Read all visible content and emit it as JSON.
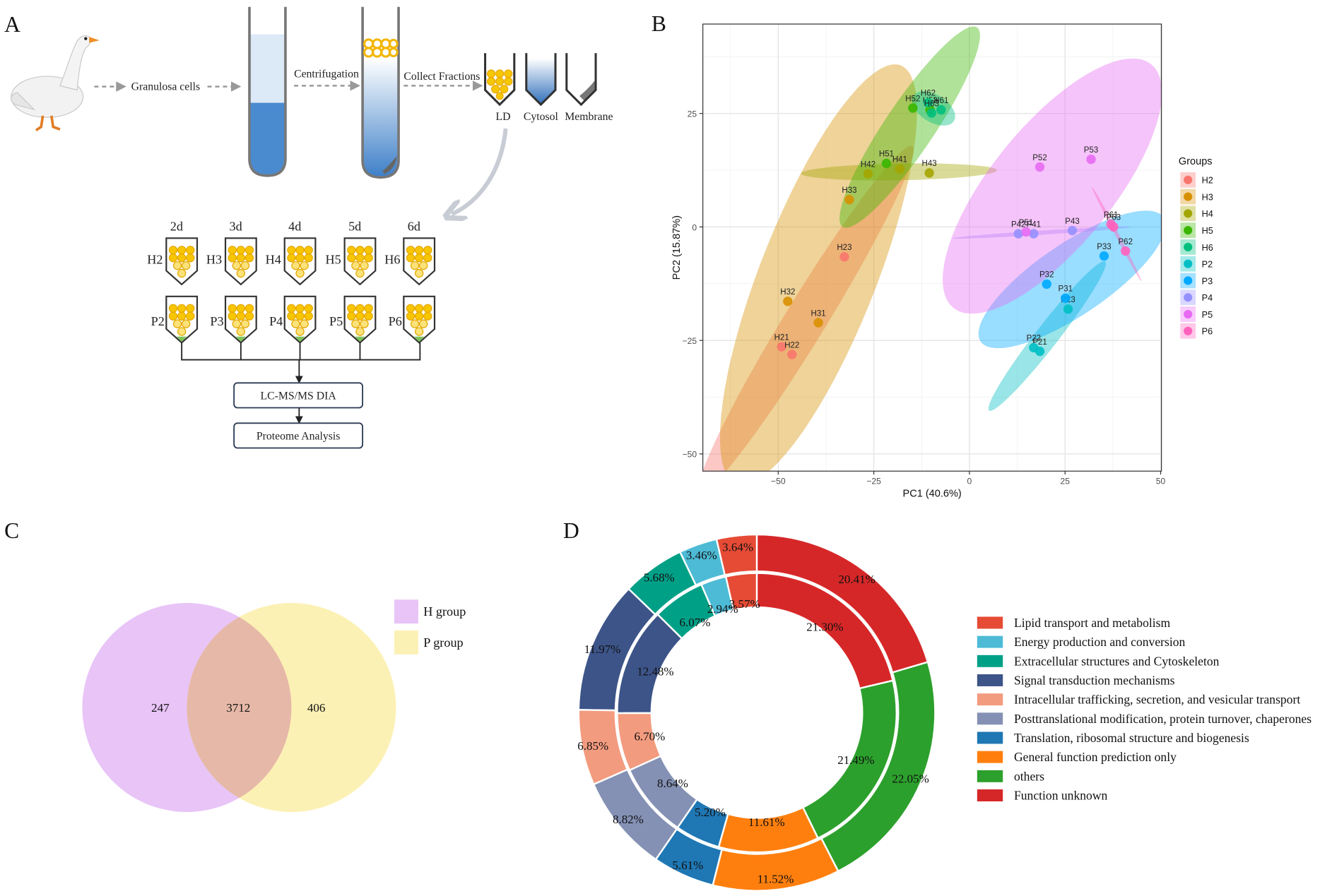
{
  "panel_labels": [
    "A",
    "B",
    "C",
    "D"
  ],
  "diagram": {
    "steps": [
      "Granulosa cells",
      "Centrifugation",
      "Collect Fractions"
    ],
    "fractions": [
      "LD",
      "Cytosol",
      "Membrane"
    ],
    "days": [
      "2d",
      "3d",
      "4d",
      "5d",
      "6d"
    ],
    "h_samples": [
      "H2",
      "H3",
      "H4",
      "H5",
      "H6"
    ],
    "p_samples": [
      "P2",
      "P3",
      "P4",
      "P5",
      "P6"
    ],
    "workflow": [
      "LC-MS/MS DIA",
      "Proteome Analysis"
    ]
  },
  "chart_data": [
    {
      "type": "scatter",
      "xlabel": "PC1 (40.6%)",
      "ylabel": "PC2 (15.87%)",
      "legend_title": "Groups",
      "xlim": [
        -69.7,
        50.2
      ],
      "ylim": [
        -53.8,
        44.7
      ],
      "xticks": [
        {
          "value": -50,
          "label": "−50"
        },
        {
          "value": -25,
          "label": "−25"
        },
        0,
        25,
        50
      ],
      "yticks": [
        {
          "value": -50,
          "label": "−50"
        },
        {
          "value": -25,
          "label": "−25"
        },
        0,
        25
      ],
      "grid": true,
      "series": [
        {
          "name": "H2",
          "color": "#F8766D",
          "labels": [
            "H21",
            "H22",
            "H23"
          ],
          "x": [
            -49.1,
            -46.4,
            -32.7
          ],
          "values": [
            -26.4,
            -28.1,
            -6.6
          ]
        },
        {
          "name": "H3",
          "color": "#D89000",
          "labels": [
            "H31",
            "H32",
            "H33"
          ],
          "x": [
            -39.5,
            -47.5,
            -31.4
          ],
          "values": [
            -21.1,
            -16.4,
            6.0
          ]
        },
        {
          "name": "H4",
          "color": "#A3A500",
          "labels": [
            "H41",
            "H42",
            "H43"
          ],
          "x": [
            -18.2,
            -26.5,
            -10.5
          ],
          "values": [
            12.8,
            11.7,
            11.9
          ]
        },
        {
          "name": "H5",
          "color": "#39B600",
          "labels": [
            "H51",
            "H52",
            "H53"
          ],
          "x": [
            -21.7,
            -14.8,
            -10.3
          ],
          "values": [
            14.0,
            26.2,
            25.8
          ]
        },
        {
          "name": "H6",
          "color": "#00BF7D",
          "labels": [
            "H61",
            "H62",
            "H63"
          ],
          "x": [
            -7.4,
            -10.8,
            -9.9
          ],
          "values": [
            25.8,
            27.4,
            25.1
          ]
        },
        {
          "name": "P2",
          "color": "#00BFC4",
          "labels": [
            "P21",
            "P22",
            "P23"
          ],
          "x": [
            18.4,
            16.8,
            25.8
          ],
          "values": [
            -27.4,
            -26.6,
            -18.1
          ]
        },
        {
          "name": "P3",
          "color": "#00A9FF",
          "labels": [
            "P31",
            "P32",
            "P33"
          ],
          "x": [
            25.1,
            20.2,
            35.2
          ],
          "values": [
            -15.7,
            -12.6,
            -6.4
          ]
        },
        {
          "name": "P4",
          "color": "#9590FF",
          "labels": [
            "P41",
            "P42",
            "P43"
          ],
          "x": [
            16.8,
            12.8,
            26.9
          ],
          "values": [
            -1.5,
            -1.5,
            -0.8
          ]
        },
        {
          "name": "P5",
          "color": "#E76BF3",
          "labels": [
            "P51",
            "P52",
            "P53"
          ],
          "x": [
            14.8,
            18.4,
            31.8
          ],
          "values": [
            -1.1,
            13.2,
            14.9
          ]
        },
        {
          "name": "P6",
          "color": "#FF62BC",
          "labels": [
            "P61",
            "P62",
            "P63"
          ],
          "x": [
            37.0,
            40.8,
            37.7
          ],
          "values": [
            0.6,
            -5.3,
            0.0
          ]
        }
      ]
    },
    {
      "type": "venn",
      "sets": [
        {
          "name": "H group",
          "color": "#E8C4F7",
          "value": 247
        },
        {
          "name": "P group",
          "color": "#FCF1B5",
          "value": 406
        }
      ],
      "intersection": {
        "color": "#E6B8A8",
        "value": 3712
      }
    },
    {
      "type": "donut",
      "categories": [
        "Lipid transport and metabolism",
        "Energy production and conversion",
        "Extracellular structures and Cytoskeleton",
        "Signal transduction mechanisms",
        "Intracellular trafficking, secretion, and vesicular transport",
        "Posttranslational modification, protein turnover, chaperones",
        "Translation, ribosomal structure and biogenesis",
        "General function prediction only",
        "others",
        "Function unknown"
      ],
      "colors": [
        "#E64B35",
        "#4DBBD5",
        "#00A087",
        "#3C5488",
        "#F39B7F",
        "#8491B4",
        "#1F77B4",
        "#FF7F0E",
        "#2CA02C",
        "#D62728"
      ],
      "series": [
        {
          "values": [
            3.64,
            3.46,
            5.68,
            11.97,
            6.85,
            8.82,
            5.61,
            11.52,
            22.05,
            20.41
          ],
          "value_labels": [
            "3.64%",
            "3.46%",
            "5.68%",
            "11.97%",
            "6.85%",
            "8.82%",
            "5.61%",
            "11.52%",
            "22.05%",
            "20.41%"
          ]
        },
        {
          "values": [
            3.57,
            2.94,
            6.07,
            12.48,
            6.7,
            8.64,
            5.2,
            11.61,
            21.49,
            21.3
          ],
          "value_labels": [
            "3.57%",
            "2.94%",
            "6.07%",
            "12.48%",
            "6.70%",
            "8.64%",
            "5.20%",
            "11.61%",
            "21.49%",
            "21.30%"
          ]
        }
      ]
    }
  ]
}
